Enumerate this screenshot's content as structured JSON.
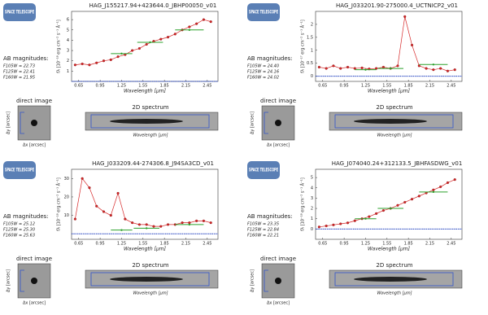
{
  "chart_data": [
    {
      "type": "line",
      "logo": "SPACE TELESCOPE",
      "title": "HAG_J155217.94+423644.0_JBHP00050_v01",
      "y_label": "fλ [10⁻¹⁸ erg cm⁻² s⁻¹ Å⁻¹]",
      "x_label": "Wavelength [μm]",
      "mag_heading": "AB magnitudes:",
      "mags": [
        "F105W = 22.73",
        "F125W = 22.41",
        "F160W = 21.95"
      ],
      "direct_label": "direct image",
      "spec2d_label": "2D spectrum",
      "dx_label": "Δx [arcsec]",
      "dy_label": "Δy [arcsec]",
      "x": [
        0.6,
        0.7,
        0.8,
        0.9,
        1.0,
        1.1,
        1.2,
        1.3,
        1.4,
        1.5,
        1.6,
        1.7,
        1.8,
        1.9,
        2.0,
        2.1,
        2.2,
        2.3,
        2.4,
        2.5
      ],
      "series": [
        {
          "color": "#d62728",
          "values": [
            1.6,
            1.7,
            1.6,
            1.8,
            2.0,
            2.1,
            2.4,
            2.6,
            3.0,
            3.2,
            3.6,
            3.9,
            4.1,
            4.3,
            4.6,
            5.0,
            5.3,
            5.6,
            6.0,
            5.8
          ]
        }
      ],
      "photometry": {
        "color": "#2ca02c",
        "x": [
          1.25,
          1.65,
          2.2
        ],
        "values": [
          2.7,
          3.8,
          5.0
        ],
        "halfwidth": [
          0.15,
          0.18,
          0.2
        ]
      },
      "zero_color": "#1f3fbf",
      "xlim": [
        0.55,
        2.6
      ],
      "xticks": [
        0.65,
        0.95,
        1.25,
        1.55,
        1.85,
        2.15,
        2.45
      ],
      "ylim": [
        0,
        6.8
      ],
      "yticks": [
        1,
        2,
        3,
        4,
        5,
        6
      ]
    },
    {
      "type": "line",
      "logo": "SPACE TELESCOPE",
      "title": "HAG_J033201.90-275000.4_UCTNICP2_v01",
      "y_label": "fλ [10⁻¹⁷ erg cm⁻² s⁻¹ Å⁻¹]",
      "x_label": "Wavelength [μm]",
      "mag_heading": "AB magnitudes:",
      "mags": [
        "F105W = 24.40",
        "F125W = 24.16",
        "F160W = 24.02"
      ],
      "direct_label": "direct image",
      "spec2d_label": "2D spectrum",
      "dx_label": "Δx [arcsec]",
      "dy_label": "Δy [arcsec]",
      "x": [
        0.6,
        0.7,
        0.8,
        0.9,
        1.0,
        1.1,
        1.2,
        1.3,
        1.4,
        1.5,
        1.6,
        1.7,
        1.8,
        1.9,
        2.0,
        2.1,
        2.2,
        2.3,
        2.4,
        2.5
      ],
      "series": [
        {
          "color": "#d62728",
          "values": [
            0.35,
            0.3,
            0.4,
            0.3,
            0.35,
            0.3,
            0.32,
            0.28,
            0.3,
            0.35,
            0.3,
            0.4,
            2.3,
            1.2,
            0.4,
            0.3,
            0.25,
            0.3,
            0.2,
            0.25
          ]
        }
      ],
      "photometry": {
        "color": "#2ca02c",
        "x": [
          1.25,
          1.6,
          2.2
        ],
        "values": [
          0.25,
          0.3,
          0.45
        ],
        "halfwidth": [
          0.15,
          0.18,
          0.2
        ]
      },
      "zero_color": "#1f3fbf",
      "xlim": [
        0.55,
        2.6
      ],
      "xticks": [
        0.65,
        0.95,
        1.25,
        1.55,
        1.85,
        2.15,
        2.45
      ],
      "ylim": [
        -0.2,
        2.5
      ],
      "yticks": [
        0.0,
        0.5,
        1.0,
        1.5,
        2.0
      ]
    },
    {
      "type": "line",
      "logo": "SPACE TELESCOPE",
      "title": "HAG_J033209.44-274306.8_J94SA3CD_v01",
      "y_label": "fλ [10⁻¹⁸ erg cm⁻² s⁻¹ Å⁻¹]",
      "x_label": "Wavelength [μm]",
      "mag_heading": "AB magnitudes:",
      "mags": [
        "F105W = 25.12",
        "F125W = 25.30",
        "F160W = 25.63"
      ],
      "direct_label": "direct image",
      "spec2d_label": "2D spectrum",
      "dx_label": "Δx [arcsec]",
      "dy_label": "Δy [arcsec]",
      "x": [
        0.6,
        0.7,
        0.8,
        0.9,
        1.0,
        1.1,
        1.2,
        1.3,
        1.4,
        1.5,
        1.6,
        1.7,
        1.8,
        1.9,
        2.0,
        2.1,
        2.2,
        2.3,
        2.4,
        2.5
      ],
      "series": [
        {
          "color": "#d62728",
          "values": [
            8,
            30,
            25,
            15,
            12,
            10,
            22,
            8,
            6,
            5,
            5,
            4,
            4,
            5,
            5,
            6,
            6,
            7,
            7,
            6
          ]
        }
      ],
      "photometry": {
        "color": "#2ca02c",
        "x": [
          1.25,
          1.6,
          2.2
        ],
        "values": [
          2,
          3,
          5
        ],
        "halfwidth": [
          0.15,
          0.18,
          0.2
        ]
      },
      "zero_color": "#1f3fbf",
      "xlim": [
        0.55,
        2.6
      ],
      "xticks": [
        0.65,
        0.95,
        1.25,
        1.55,
        1.85,
        2.15,
        2.45
      ],
      "ylim": [
        -3,
        35
      ],
      "yticks": [
        10,
        20,
        30
      ]
    },
    {
      "type": "line",
      "logo": "SPACE TELESCOPE",
      "title": "HAG_J074040.24+312133.5_JBHFASDWG_v01",
      "y_label": "fλ [10⁻¹⁸ erg cm⁻² s⁻¹ Å⁻¹]",
      "x_label": "Wavelength [μm]",
      "mag_heading": "AB magnitudes:",
      "mags": [
        "F105W = 23.35",
        "F125W = 22.84",
        "F160W = 22.21"
      ],
      "direct_label": "direct image",
      "spec2d_label": "2D spectrum",
      "dx_label": "Δx [arcsec]",
      "dy_label": "Δy [arcsec]",
      "x": [
        0.6,
        0.7,
        0.8,
        0.9,
        1.0,
        1.1,
        1.2,
        1.3,
        1.4,
        1.5,
        1.6,
        1.7,
        1.8,
        1.9,
        2.0,
        2.1,
        2.2,
        2.3,
        2.4,
        2.5
      ],
      "series": [
        {
          "color": "#d62728",
          "values": [
            0.2,
            0.3,
            0.4,
            0.5,
            0.6,
            0.8,
            1.0,
            1.2,
            1.5,
            1.8,
            2.0,
            2.3,
            2.6,
            2.9,
            3.2,
            3.5,
            3.8,
            4.1,
            4.5,
            4.8
          ]
        }
      ],
      "photometry": {
        "color": "#2ca02c",
        "x": [
          1.25,
          1.6,
          2.2
        ],
        "values": [
          1.0,
          2.0,
          3.6
        ],
        "halfwidth": [
          0.15,
          0.18,
          0.2
        ]
      },
      "zero_color": "#1f3fbf",
      "xlim": [
        0.55,
        2.6
      ],
      "xticks": [
        0.65,
        0.95,
        1.25,
        1.55,
        1.85,
        2.15,
        2.45
      ],
      "ylim": [
        -1,
        5.8
      ],
      "yticks": [
        0,
        1,
        2,
        3,
        4,
        5
      ]
    }
  ]
}
